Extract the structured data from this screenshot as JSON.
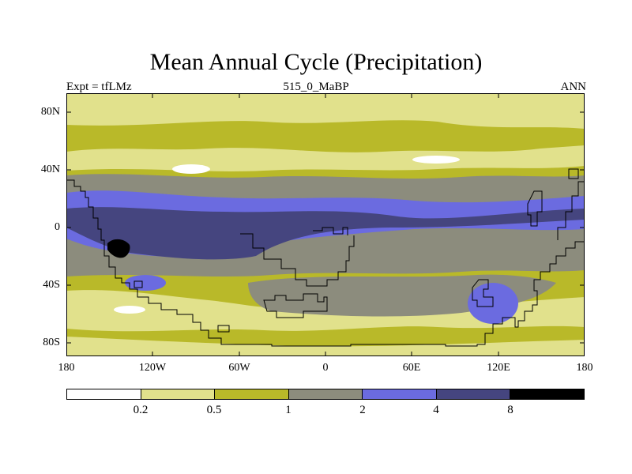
{
  "title": "Mean Annual Cycle (Precipitation)",
  "subtitle": {
    "left": "Expt = tfLMz",
    "center": "515_0_MaBP",
    "right": "ANN"
  },
  "map": {
    "lat_ticks": [
      "80N",
      "40N",
      "0",
      "40S",
      "80S"
    ],
    "lon_ticks": [
      "180",
      "120W",
      "60W",
      "0",
      "60E",
      "120E",
      "180"
    ]
  },
  "colorbar": {
    "labels": [
      "0.2",
      "0.5",
      "1",
      "2",
      "4",
      "8"
    ],
    "colors": [
      "#ffffff",
      "#e1e18c",
      "#b9b929",
      "#8c8c7d",
      "#6b6be0",
      "#45457f",
      "#000000"
    ]
  }
}
